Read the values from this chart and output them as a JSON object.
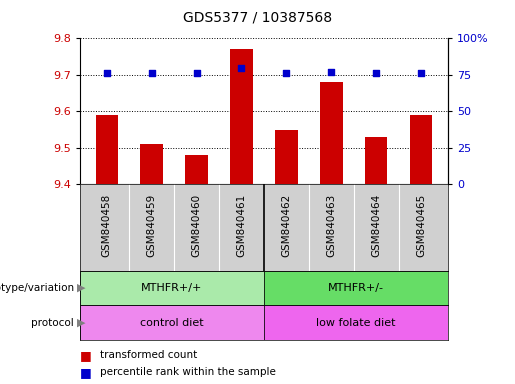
{
  "title": "GDS5377 / 10387568",
  "samples": [
    "GSM840458",
    "GSM840459",
    "GSM840460",
    "GSM840461",
    "GSM840462",
    "GSM840463",
    "GSM840464",
    "GSM840465"
  ],
  "red_values": [
    9.59,
    9.51,
    9.48,
    9.77,
    9.55,
    9.68,
    9.53,
    9.59
  ],
  "blue_values": [
    76,
    76,
    76,
    80,
    76,
    77,
    76,
    76
  ],
  "ylim_left": [
    9.4,
    9.8
  ],
  "ylim_right": [
    0,
    100
  ],
  "yticks_left": [
    9.4,
    9.5,
    9.6,
    9.7,
    9.8
  ],
  "yticks_right": [
    0,
    25,
    50,
    75,
    100
  ],
  "bar_color": "#cc0000",
  "dot_color": "#0000cc",
  "bar_width": 0.5,
  "genotype_labels": [
    "MTHFR+/+",
    "MTHFR+/-"
  ],
  "genotype_colors": [
    "#aaeaaa",
    "#66dd66"
  ],
  "protocol_colors": [
    "#ee88ee",
    "#ee66ee"
  ],
  "protocol_labels": [
    "control diet",
    "low folate diet"
  ],
  "legend_red": "transformed count",
  "legend_blue": "percentile rank within the sample",
  "label_genotype": "genotype/variation",
  "label_protocol": "protocol",
  "bg_color": "#ffffff",
  "tick_area_color": "#d0d0d0"
}
